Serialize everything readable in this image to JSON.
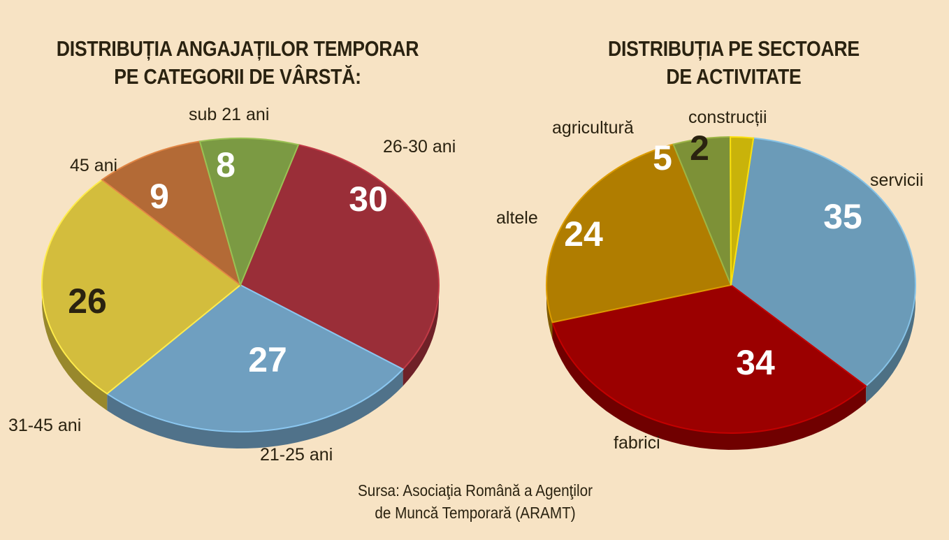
{
  "chart_data": [
    {
      "type": "pie",
      "title": [
        "DISTRIBUȚIA ANGAJAȚILOR TEMPORAR",
        "PE CATEGORII DE VÂRSTĂ:"
      ],
      "slices": [
        {
          "label": "26-30 ani",
          "value": 30,
          "color": "#9a2e38"
        },
        {
          "label": "21-25 ani",
          "value": 27,
          "color": "#6f9fc0"
        },
        {
          "label": "31-45 ani",
          "value": 26,
          "color": "#d3bd3d"
        },
        {
          "label": "45 ani",
          "value": 9,
          "color": "#b36a36"
        },
        {
          "label": "sub 21 ani",
          "value": 8,
          "color": "#7b9a43"
        }
      ]
    },
    {
      "type": "pie",
      "title": [
        "DISTRIBUȚIA PE SECTOARE",
        "DE ACTIVITATE"
      ],
      "slices": [
        {
          "label": "servicii",
          "value": 35,
          "color": "#6b9bb8"
        },
        {
          "label": "fabrici",
          "value": 34,
          "color": "#9b0000"
        },
        {
          "label": "altele",
          "value": 24,
          "color": "#b07d00"
        },
        {
          "label": "agricultură",
          "value": 5,
          "color": "#7d9137"
        },
        {
          "label": "construcții",
          "value": 2,
          "color": "#c9b30a"
        }
      ]
    }
  ],
  "source": [
    "Sursa: Asociaţia Română a Agenţilor",
    "de Muncă Temporară (ARAMT)"
  ]
}
